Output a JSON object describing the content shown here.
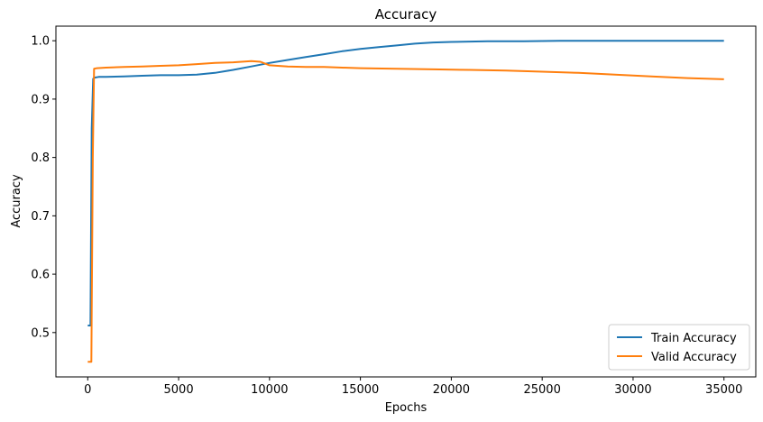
{
  "chart_data": {
    "type": "line",
    "title": "Accuracy",
    "xlabel": "Epochs",
    "ylabel": "Accuracy",
    "xlim": [
      -1750,
      36750
    ],
    "ylim": [
      0.424,
      1.025
    ],
    "xticks": [
      0,
      5000,
      10000,
      15000,
      20000,
      25000,
      30000,
      35000
    ],
    "yticks": [
      0.5,
      0.6,
      0.7,
      0.8,
      0.9,
      1.0
    ],
    "ytick_labels": [
      "0.5",
      "0.6",
      "0.7",
      "0.8",
      "0.9",
      "1.0"
    ],
    "grid": false,
    "legend_position": "lower-right",
    "series": [
      {
        "name": "Train Accuracy",
        "color": "#1f77b4",
        "x": [
          0,
          150,
          220,
          300,
          400,
          600,
          1000,
          2000,
          3000,
          4000,
          5000,
          6000,
          7000,
          8000,
          9000,
          10000,
          11000,
          12000,
          13000,
          14000,
          15000,
          16000,
          17000,
          18000,
          19000,
          20000,
          22000,
          24000,
          26000,
          28000,
          30000,
          32000,
          35000
        ],
        "y": [
          0.512,
          0.512,
          0.85,
          0.935,
          0.937,
          0.938,
          0.938,
          0.939,
          0.94,
          0.941,
          0.941,
          0.942,
          0.945,
          0.95,
          0.956,
          0.962,
          0.967,
          0.972,
          0.977,
          0.982,
          0.986,
          0.989,
          0.992,
          0.995,
          0.997,
          0.998,
          0.999,
          0.999,
          1.0,
          1.0,
          1.0,
          1.0,
          1.0
        ]
      },
      {
        "name": "Valid Accuracy",
        "color": "#ff7f0e",
        "x": [
          0,
          200,
          280,
          350,
          500,
          1000,
          2000,
          3000,
          4000,
          5000,
          6000,
          7000,
          8000,
          9000,
          9500,
          10000,
          11000,
          12000,
          13000,
          14000,
          15000,
          17000,
          19000,
          21000,
          23000,
          25000,
          27000,
          29000,
          31000,
          33000,
          35000
        ],
        "y": [
          0.45,
          0.45,
          0.8,
          0.952,
          0.953,
          0.954,
          0.955,
          0.956,
          0.957,
          0.958,
          0.96,
          0.962,
          0.963,
          0.965,
          0.964,
          0.958,
          0.956,
          0.955,
          0.955,
          0.954,
          0.953,
          0.952,
          0.951,
          0.95,
          0.949,
          0.947,
          0.945,
          0.942,
          0.939,
          0.936,
          0.934
        ]
      }
    ]
  }
}
